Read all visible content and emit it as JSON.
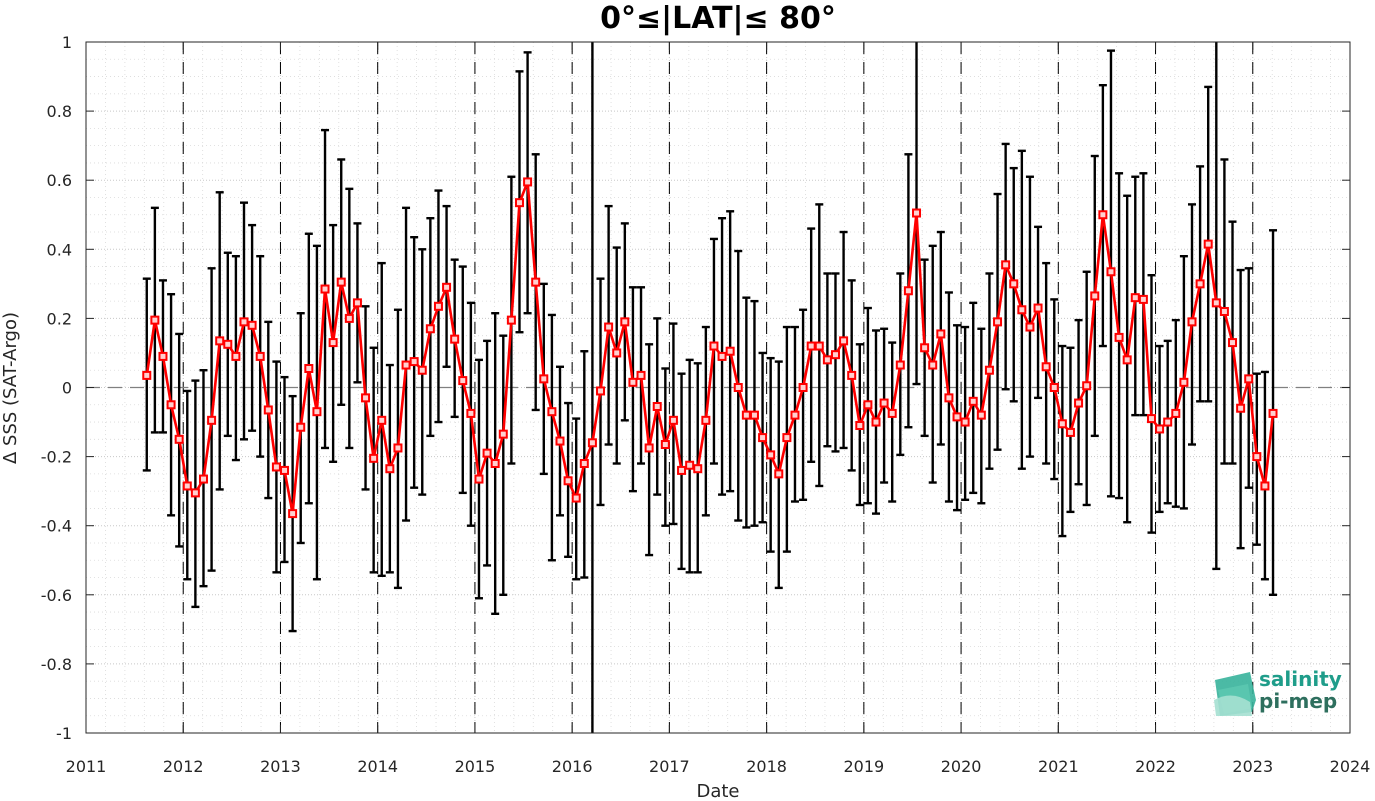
{
  "chart_data": {
    "type": "line",
    "title": "0°≤|LAT|≤ 80°",
    "xlabel": "Date",
    "ylabel": "Δ SSS (SAT-Argo)",
    "xlim": [
      2011,
      2024
    ],
    "ylim": [
      -1,
      1
    ],
    "xticks": [
      "2011",
      "2012",
      "2013",
      "2014",
      "2015",
      "2016",
      "2017",
      "2018",
      "2019",
      "2020",
      "2021",
      "2022",
      "2023",
      "2024"
    ],
    "yticks": [
      "-1",
      "-0.8",
      "-0.6",
      "-0.4",
      "-0.2",
      "0",
      "0.2",
      "0.4",
      "0.6",
      "0.8",
      "1"
    ],
    "grid": true,
    "reference_line": 0,
    "colors": {
      "series": "#ff0000",
      "error_bars": "#000000",
      "grid": "#d0d0d0",
      "logo_primary": "#1f9d8a",
      "logo_secondary": "#2e6f5e"
    },
    "series": [
      {
        "x": [
          "2011-08",
          "2011-09",
          "2011-10",
          "2011-11",
          "2011-12",
          "2012-01",
          "2012-02",
          "2012-03",
          "2012-04",
          "2012-05",
          "2012-06",
          "2012-07",
          "2012-08",
          "2012-09",
          "2012-10",
          "2012-11",
          "2012-12",
          "2013-01",
          "2013-02",
          "2013-03",
          "2013-04",
          "2013-05",
          "2013-06",
          "2013-07",
          "2013-08",
          "2013-09",
          "2013-10",
          "2013-11",
          "2013-12",
          "2014-01",
          "2014-02",
          "2014-03",
          "2014-04",
          "2014-05",
          "2014-06",
          "2014-07",
          "2014-08",
          "2014-09",
          "2014-10",
          "2014-11",
          "2014-12",
          "2015-01",
          "2015-02",
          "2015-03",
          "2015-04",
          "2015-05",
          "2015-06",
          "2015-07",
          "2015-08",
          "2015-09",
          "2015-10",
          "2015-11",
          "2015-12",
          "2016-01",
          "2016-02",
          "2016-03",
          "2016-04",
          "2016-05",
          "2016-06",
          "2016-07",
          "2016-08",
          "2016-09",
          "2016-10",
          "2016-11",
          "2016-12",
          "2017-01",
          "2017-02",
          "2017-03",
          "2017-04",
          "2017-05",
          "2017-06",
          "2017-07",
          "2017-08",
          "2017-09",
          "2017-10",
          "2017-11",
          "2017-12",
          "2018-01",
          "2018-02",
          "2018-03",
          "2018-04",
          "2018-05",
          "2018-06",
          "2018-07",
          "2018-08",
          "2018-09",
          "2018-10",
          "2018-11",
          "2018-12",
          "2019-01",
          "2019-02",
          "2019-03",
          "2019-04",
          "2019-05",
          "2019-06",
          "2019-07",
          "2019-08",
          "2019-09",
          "2019-10",
          "2019-11",
          "2019-12",
          "2020-01",
          "2020-02",
          "2020-03",
          "2020-04",
          "2020-05",
          "2020-06",
          "2020-07",
          "2020-08",
          "2020-09",
          "2020-10",
          "2020-11",
          "2020-12",
          "2021-01",
          "2021-02",
          "2021-03",
          "2021-04",
          "2021-05",
          "2021-06",
          "2021-07",
          "2021-08",
          "2021-09",
          "2021-10",
          "2021-11",
          "2021-12",
          "2022-01",
          "2022-02",
          "2022-03",
          "2022-04",
          "2022-05",
          "2022-06",
          "2022-07",
          "2022-08",
          "2022-09",
          "2022-10",
          "2022-11",
          "2022-12",
          "2023-01",
          "2023-02",
          "2023-03"
        ],
        "y": [
          0.035,
          0.195,
          0.09,
          -0.05,
          -0.15,
          -0.285,
          -0.305,
          -0.265,
          -0.095,
          0.135,
          0.125,
          0.09,
          0.19,
          0.18,
          0.09,
          -0.065,
          -0.23,
          -0.24,
          -0.365,
          -0.115,
          0.055,
          -0.07,
          0.285,
          0.13,
          0.305,
          0.2,
          0.245,
          -0.03,
          -0.205,
          -0.095,
          -0.235,
          -0.175,
          0.065,
          0.075,
          0.05,
          0.17,
          0.235,
          0.29,
          0.14,
          0.02,
          -0.075,
          -0.265,
          -0.19,
          -0.22,
          -0.135,
          0.195,
          0.535,
          0.595,
          0.305,
          0.025,
          -0.07,
          -0.155,
          -0.27,
          -0.32,
          -0.22,
          -0.16,
          -0.01,
          0.175,
          0.1,
          0.19,
          0.015,
          0.035,
          -0.175,
          -0.055,
          -0.165,
          -0.095,
          -0.24,
          -0.225,
          -0.235,
          -0.095,
          0.12,
          0.09,
          0.105,
          0.0,
          -0.08,
          -0.08,
          -0.145,
          -0.195,
          -0.25,
          -0.145,
          -0.08,
          0.0,
          0.12,
          0.12,
          0.08,
          0.095,
          0.135,
          0.035,
          -0.11,
          -0.05,
          -0.1,
          -0.045,
          -0.075,
          0.065,
          0.28,
          0.505,
          0.115,
          0.065,
          0.155,
          -0.03,
          -0.085,
          -0.1,
          -0.04,
          -0.08,
          0.05,
          0.19,
          0.355,
          0.3,
          0.225,
          0.175,
          0.23,
          0.06,
          0.0,
          -0.105,
          -0.13,
          -0.045,
          0.005,
          0.265,
          0.5,
          0.335,
          0.145,
          0.08,
          0.26,
          0.255,
          -0.09,
          -0.12,
          -0.1,
          -0.075,
          0.015,
          0.19,
          0.3,
          0.415,
          0.245,
          0.22,
          0.13,
          -0.06,
          0.025,
          -0.2,
          -0.285,
          -0.075
        ],
        "err_upper": [
          0.315,
          0.52,
          0.31,
          0.27,
          0.155,
          -0.01,
          0.02,
          0.05,
          0.345,
          0.565,
          0.39,
          0.38,
          0.535,
          0.47,
          0.38,
          0.19,
          0.075,
          0.03,
          -0.025,
          0.215,
          0.445,
          0.41,
          0.745,
          0.47,
          0.66,
          0.575,
          0.475,
          0.235,
          0.115,
          0.36,
          0.065,
          0.225,
          0.52,
          0.435,
          0.4,
          0.49,
          0.57,
          0.525,
          0.37,
          0.35,
          0.245,
          0.08,
          0.135,
          0.215,
          0.15,
          0.61,
          0.915,
          0.97,
          0.675,
          0.3,
          0.21,
          0.06,
          -0.045,
          -0.09,
          0.105,
          1.0,
          0.315,
          0.525,
          0.405,
          0.475,
          0.29,
          0.29,
          0.125,
          0.2,
          0.055,
          0.185,
          0.04,
          0.08,
          0.07,
          0.175,
          0.43,
          0.49,
          0.51,
          0.395,
          0.26,
          0.25,
          0.1,
          0.085,
          0.075,
          0.175,
          0.175,
          0.225,
          0.46,
          0.53,
          0.33,
          0.33,
          0.45,
          0.31,
          0.125,
          0.23,
          0.165,
          0.17,
          0.13,
          0.33,
          0.675,
          1.0,
          0.37,
          0.41,
          0.45,
          0.275,
          0.18,
          0.175,
          0.245,
          0.17,
          0.33,
          0.56,
          0.705,
          0.635,
          0.685,
          0.61,
          0.465,
          0.36,
          0.255,
          0.12,
          0.115,
          0.195,
          0.335,
          0.67,
          0.875,
          0.975,
          0.62,
          0.555,
          0.61,
          0.62,
          0.325,
          0.12,
          0.135,
          0.195,
          0.38,
          0.53,
          0.64,
          0.87,
          1.0,
          0.66,
          0.48,
          0.34,
          0.345,
          0.04,
          0.045,
          0.455
        ],
        "err_lower": [
          -0.24,
          -0.13,
          -0.13,
          -0.37,
          -0.46,
          -0.555,
          -0.635,
          -0.575,
          -0.53,
          -0.295,
          -0.14,
          -0.21,
          -0.15,
          -0.125,
          -0.2,
          -0.32,
          -0.535,
          -0.505,
          -0.705,
          -0.45,
          -0.335,
          -0.555,
          -0.175,
          -0.215,
          -0.05,
          -0.175,
          0.015,
          -0.295,
          -0.535,
          -0.545,
          -0.535,
          -0.58,
          -0.385,
          -0.29,
          -0.31,
          -0.14,
          -0.1,
          0.06,
          -0.085,
          -0.305,
          -0.4,
          -0.61,
          -0.515,
          -0.655,
          -0.6,
          -0.22,
          0.16,
          0.215,
          -0.065,
          -0.25,
          -0.5,
          -0.37,
          -0.49,
          -0.555,
          -0.55,
          -1.0,
          -0.34,
          -0.165,
          -0.22,
          -0.095,
          -0.3,
          -0.22,
          -0.485,
          -0.31,
          -0.4,
          -0.395,
          -0.525,
          -0.535,
          -0.535,
          -0.37,
          -0.22,
          -0.31,
          -0.3,
          -0.385,
          -0.405,
          -0.4,
          -0.39,
          -0.475,
          -0.58,
          -0.475,
          -0.33,
          -0.325,
          -0.215,
          -0.285,
          -0.17,
          -0.185,
          -0.175,
          -0.24,
          -0.34,
          -0.335,
          -0.365,
          -0.275,
          -0.33,
          -0.195,
          -0.115,
          0.01,
          -0.14,
          -0.275,
          -0.165,
          -0.33,
          -0.355,
          -0.325,
          -0.305,
          -0.335,
          -0.235,
          -0.18,
          -0.005,
          -0.04,
          -0.235,
          -0.2,
          -0.03,
          -0.22,
          -0.265,
          -0.43,
          -0.36,
          -0.28,
          -0.34,
          -0.14,
          0.12,
          -0.315,
          -0.32,
          -0.39,
          -0.08,
          -0.08,
          -0.42,
          -0.36,
          -0.335,
          -0.345,
          -0.35,
          -0.165,
          -0.04,
          -0.04,
          -0.525,
          -0.22,
          -0.22,
          -0.465,
          -0.29,
          -0.455,
          -0.555,
          -0.6
        ]
      }
    ]
  },
  "logo": {
    "line1": "salinity",
    "line2": "pi-mep"
  }
}
